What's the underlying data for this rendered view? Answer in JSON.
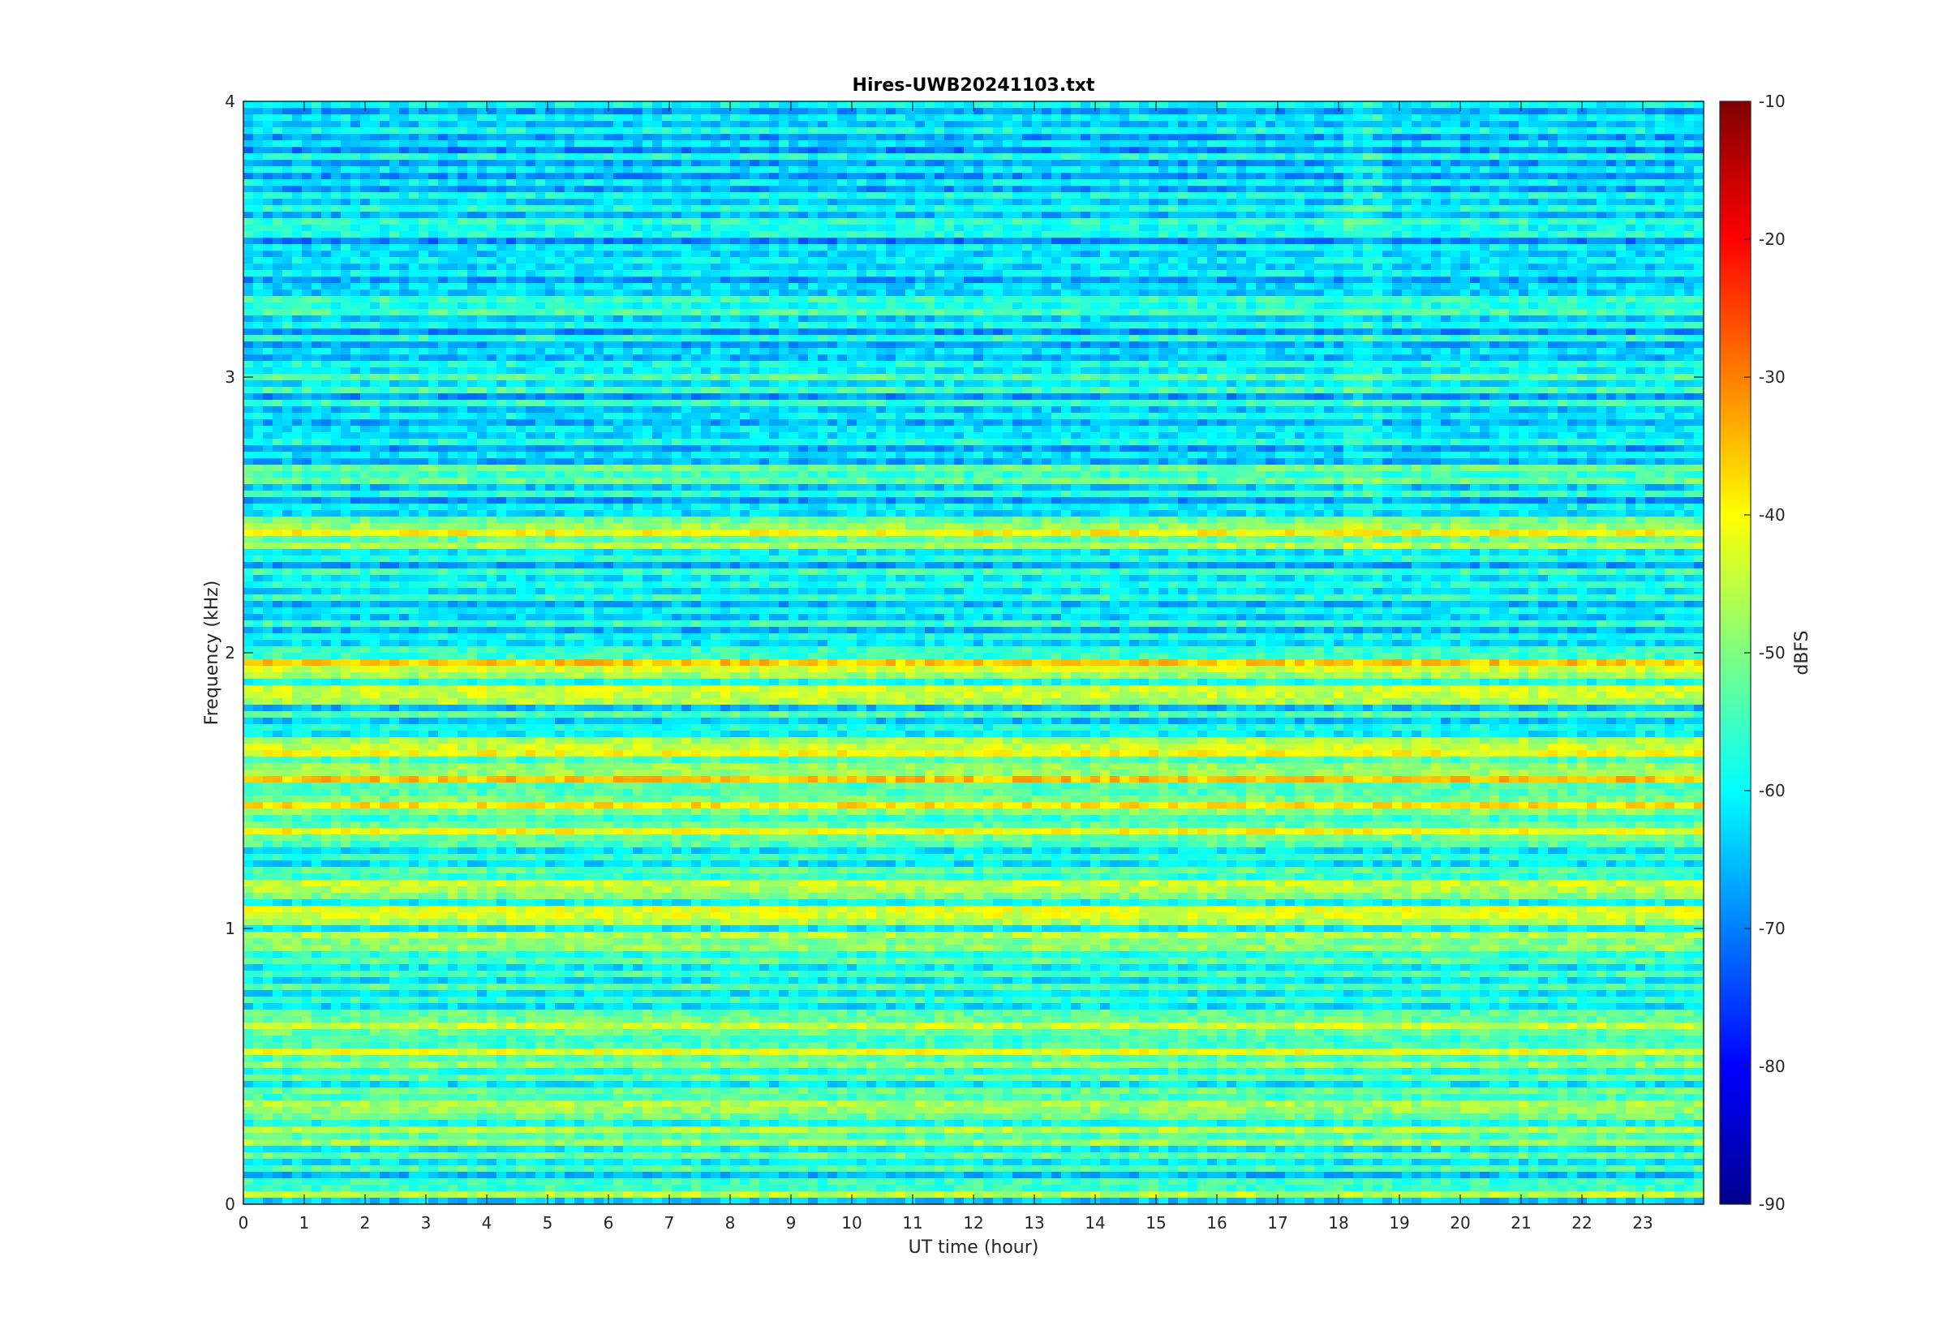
{
  "chart_data": {
    "type": "heatmap",
    "title": "Hires-UWB20241103.txt",
    "xlabel": "UT time (hour)",
    "ylabel": "Frequency (kHz)",
    "xlim": [
      0,
      24
    ],
    "ylim": [
      0,
      4
    ],
    "xticks": [
      0,
      1,
      2,
      3,
      4,
      5,
      6,
      7,
      8,
      9,
      10,
      11,
      12,
      13,
      14,
      15,
      16,
      17,
      18,
      19,
      20,
      21,
      22,
      23
    ],
    "yticks": [
      0,
      1,
      2,
      3,
      4
    ],
    "colorbar": {
      "label": "dBFS",
      "range": [
        -90,
        -10
      ],
      "ticks": [
        -90,
        -80,
        -70,
        -60,
        -50,
        -40,
        -30,
        -20,
        -10
      ],
      "colormap": "jet"
    },
    "bands_khz_dbfs": [
      {
        "f": 0.0,
        "level": -70
      },
      {
        "f": 0.05,
        "level": -44
      },
      {
        "f": 0.1,
        "level": -62
      },
      {
        "f": 0.25,
        "level": -48
      },
      {
        "f": 0.35,
        "level": -46
      },
      {
        "f": 0.55,
        "level": -45
      },
      {
        "f": 0.65,
        "level": -44
      },
      {
        "f": 0.95,
        "level": -46
      },
      {
        "f": 1.05,
        "level": -40
      },
      {
        "f": 1.15,
        "level": -44
      },
      {
        "f": 1.35,
        "level": -43
      },
      {
        "f": 1.45,
        "level": -40
      },
      {
        "f": 1.55,
        "level": -38
      },
      {
        "f": 1.65,
        "level": -40
      },
      {
        "f": 1.85,
        "level": -41
      },
      {
        "f": 1.95,
        "level": -38
      },
      {
        "f": 2.4,
        "level": -46
      },
      {
        "f": 2.45,
        "level": -44
      },
      {
        "f": 2.65,
        "level": -54
      },
      {
        "f": 3.0,
        "level": -54
      },
      {
        "f": 3.25,
        "level": -55
      },
      {
        "f": 3.55,
        "level": -56
      },
      {
        "f": 3.9,
        "level": -62
      }
    ],
    "background_dbfs": {
      "low_freq": -56,
      "high_freq": -64
    },
    "colors": {
      "axis": "#262626",
      "grid": false
    }
  }
}
